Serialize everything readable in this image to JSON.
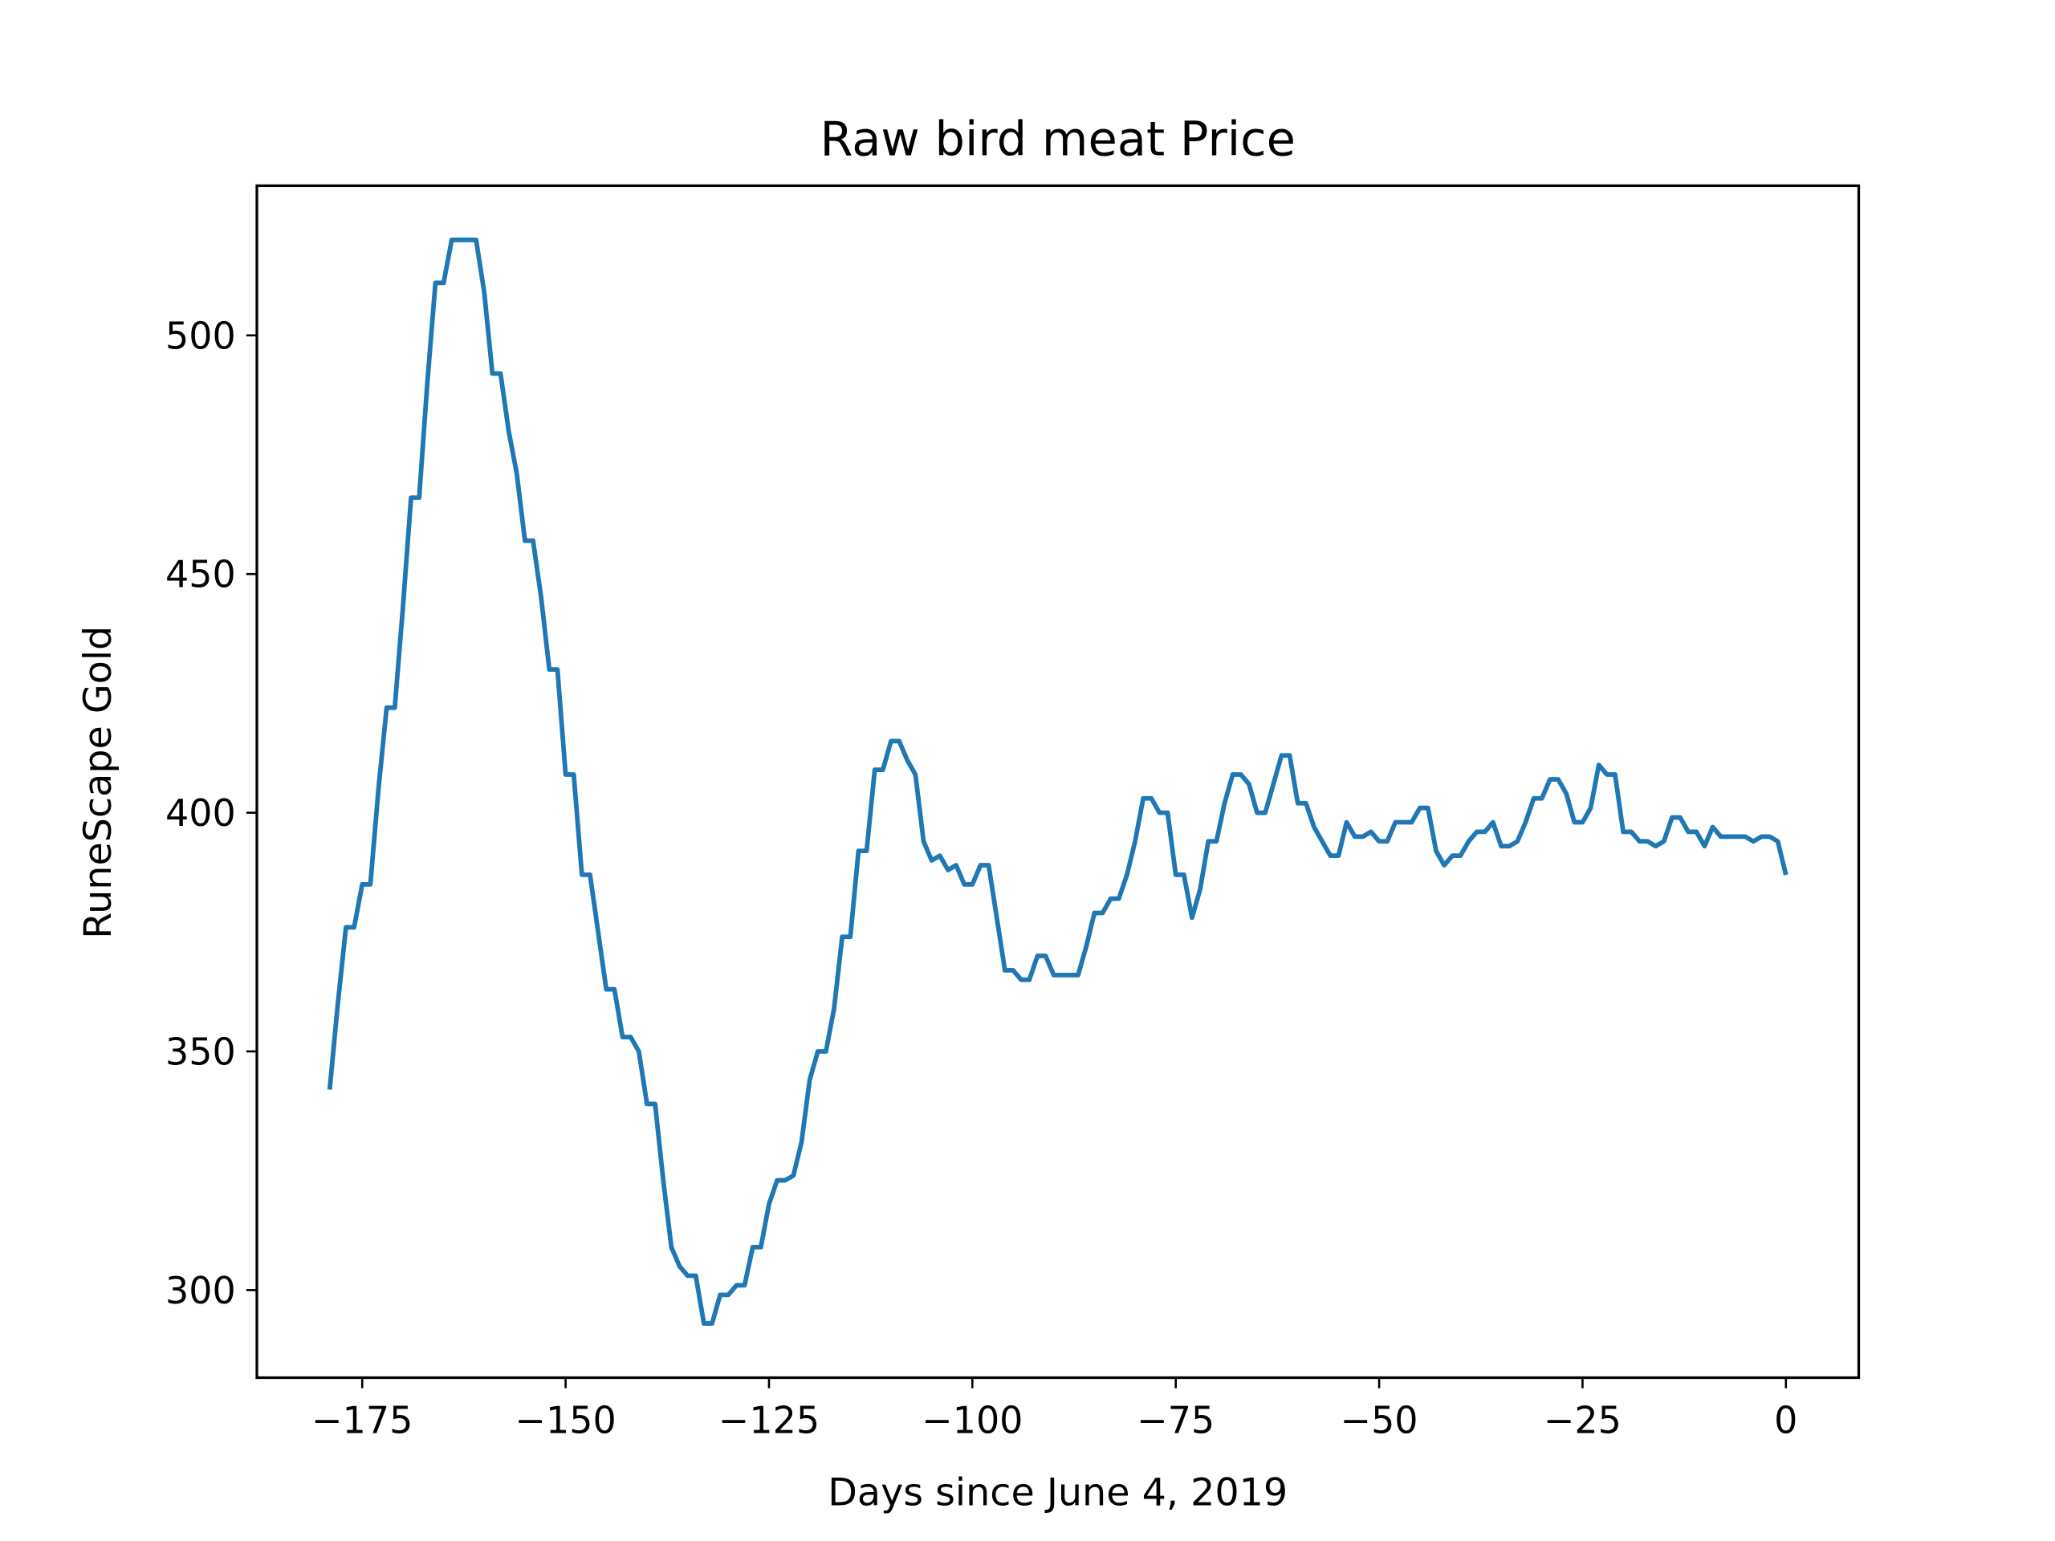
{
  "chart_data": {
    "type": "line",
    "title": "Raw bird meat Price",
    "xlabel": "Days since June 4, 2019",
    "ylabel": "RuneScape Gold",
    "x": [
      -179,
      -178,
      -177,
      -176,
      -175,
      -174,
      -173,
      -172,
      -171,
      -170,
      -169,
      -168,
      -167,
      -166,
      -165,
      -164,
      -163,
      -162,
      -161,
      -160,
      -159,
      -158,
      -157,
      -156,
      -155,
      -154,
      -153,
      -152,
      -151,
      -150,
      -149,
      -148,
      -147,
      -146,
      -145,
      -144,
      -143,
      -142,
      -141,
      -140,
      -139,
      -138,
      -137,
      -136,
      -135,
      -134,
      -133,
      -132,
      -131,
      -130,
      -129,
      -128,
      -127,
      -126,
      -125,
      -124,
      -123,
      -122,
      -121,
      -120,
      -119,
      -118,
      -117,
      -116,
      -115,
      -114,
      -113,
      -112,
      -111,
      -110,
      -109,
      -108,
      -107,
      -106,
      -105,
      -104,
      -103,
      -102,
      -101,
      -100,
      -99,
      -98,
      -97,
      -96,
      -95,
      -94,
      -93,
      -92,
      -91,
      -90,
      -89,
      -88,
      -87,
      -86,
      -85,
      -84,
      -83,
      -82,
      -81,
      -80,
      -79,
      -78,
      -77,
      -76,
      -75,
      -74,
      -73,
      -72,
      -71,
      -70,
      -69,
      -68,
      -67,
      -66,
      -65,
      -64,
      -63,
      -62,
      -61,
      -60,
      -59,
      -58,
      -57,
      -56,
      -55,
      -54,
      -53,
      -52,
      -51,
      -50,
      -49,
      -48,
      -47,
      -46,
      -45,
      -44,
      -43,
      -42,
      -41,
      -40,
      -39,
      -38,
      -37,
      -36,
      -35,
      -34,
      -33,
      -32,
      -31,
      -30,
      -29,
      -28,
      -27,
      -26,
      -25,
      -24,
      -23,
      -22,
      -21,
      -20,
      -19,
      -18,
      -17,
      -16,
      -15,
      -14,
      -13,
      -12,
      -11,
      -10,
      -9,
      -8,
      -7,
      -6,
      -5,
      -4,
      -3,
      -2,
      -1,
      0
    ],
    "series": [
      {
        "color": "#1f77b4",
        "values": [
          342,
          360,
          376,
          376,
          385,
          385,
          405,
          422,
          422,
          443,
          466,
          466,
          490,
          511,
          511,
          520,
          520,
          520,
          520,
          509,
          492,
          492,
          480,
          471,
          457,
          457,
          445,
          430,
          430,
          408,
          408,
          387,
          387,
          375,
          363,
          363,
          353,
          353,
          350,
          339,
          339,
          323,
          309,
          305,
          303,
          303,
          293,
          293,
          299,
          299,
          301,
          301,
          309,
          309,
          318,
          323,
          323,
          324,
          331,
          344,
          350,
          350,
          359,
          374,
          374,
          392,
          392,
          409,
          409,
          415,
          415,
          411,
          408,
          394,
          390,
          391,
          388,
          389,
          385,
          385,
          389,
          389,
          378,
          367,
          367,
          365,
          365,
          370,
          370,
          366,
          366,
          366,
          366,
          372,
          379,
          379,
          382,
          382,
          387,
          394,
          403,
          403,
          400,
          400,
          387,
          387,
          378,
          384,
          394,
          394,
          402,
          408,
          408,
          406,
          400,
          400,
          406,
          412,
          412,
          402,
          402,
          397,
          394,
          391,
          391,
          398,
          395,
          395,
          396,
          394,
          394,
          398,
          398,
          398,
          401,
          401,
          392,
          389,
          391,
          391,
          394,
          396,
          396,
          398,
          393,
          393,
          394,
          398,
          403,
          403,
          407,
          407,
          404,
          398,
          398,
          401,
          410,
          408,
          408,
          396,
          396,
          394,
          394,
          393,
          394,
          399,
          399,
          396,
          396,
          393,
          397,
          395,
          395,
          395,
          395,
          394,
          395,
          395,
          394,
          387
        ]
      }
    ],
    "xlim": [
      -187.95,
      8.95
    ],
    "ylim": [
      281.65,
      531.35
    ],
    "xticks": [
      {
        "value": -175,
        "label": "−175"
      },
      {
        "value": -150,
        "label": "−150"
      },
      {
        "value": -125,
        "label": "−125"
      },
      {
        "value": -100,
        "label": "−100"
      },
      {
        "value": -75,
        "label": "−75"
      },
      {
        "value": -50,
        "label": "−50"
      },
      {
        "value": -25,
        "label": "−25"
      },
      0
    ],
    "yticks": [
      300,
      350,
      400,
      450,
      500
    ]
  }
}
